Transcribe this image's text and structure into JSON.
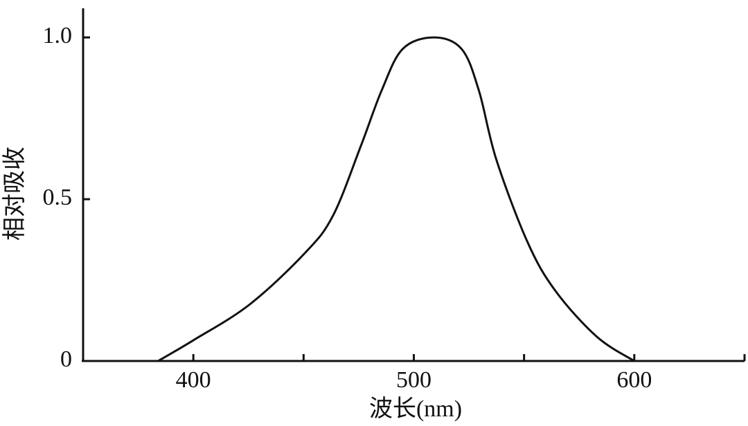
{
  "chart_data": {
    "type": "line",
    "xlabel": "波长(nm)",
    "ylabel": "相对吸收",
    "x": [
      384,
      400,
      425.6,
      450.8,
      463.4,
      476,
      485.4,
      494.9,
      509,
      521.7,
      529.5,
      537.4,
      551.6,
      564.2,
      583,
      600
    ],
    "values": [
      0,
      0.064,
      0.175,
      0.335,
      0.45,
      0.665,
      0.836,
      0.964,
      1.0,
      0.964,
      0.836,
      0.623,
      0.367,
      0.217,
      0.075,
      0
    ],
    "color": "#111111",
    "xlim": [
      350,
      650
    ],
    "xticks": [
      400,
      500,
      600
    ],
    "xminor_ticks": [
      450,
      550,
      650
    ],
    "ylim": [
      0,
      1.09
    ],
    "yticks": [
      0,
      0.5,
      {
        "value": 1,
        "label": "1.0"
      }
    ],
    "grid": false
  }
}
